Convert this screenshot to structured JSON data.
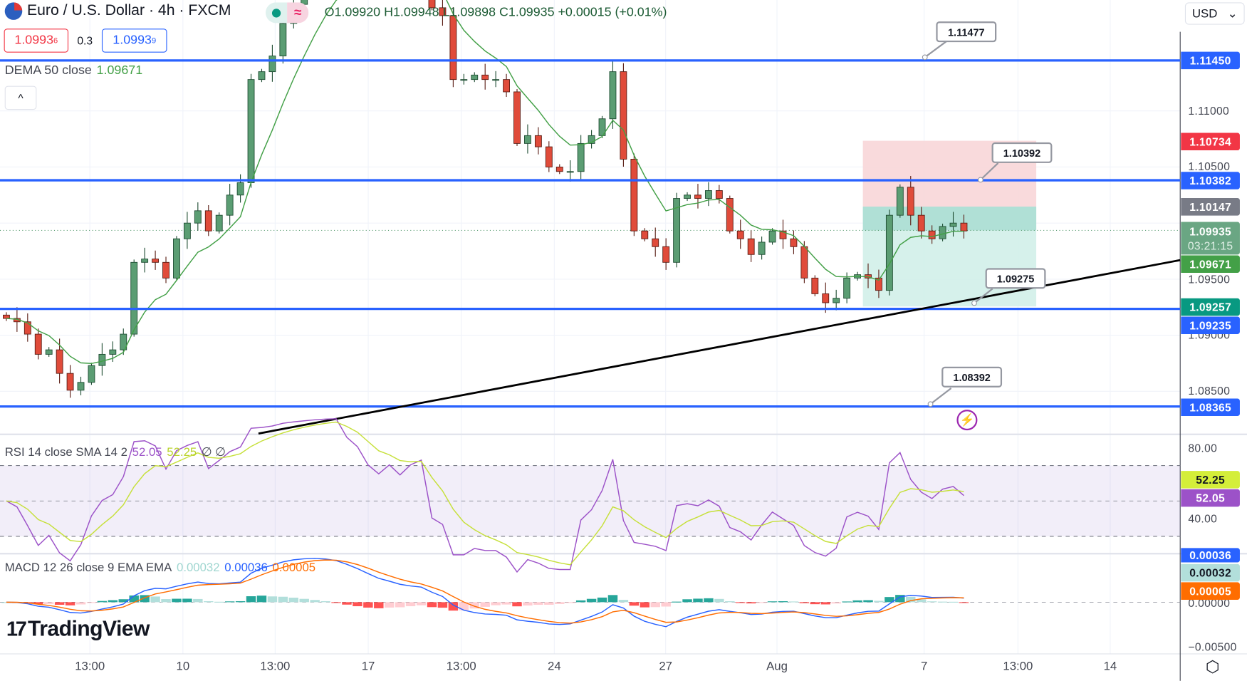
{
  "header": {
    "symbol_title": "Euro / U.S. Dollar · 4h · FXCM",
    "ohlc": {
      "open": "O1.09920",
      "high": "H1.09948",
      "low": "L1.09898",
      "close": "C1.09935",
      "change": "+0.00015 (+0.01%)"
    },
    "market_status_icon": "market-open-dot",
    "data_delay_icon": "wave-icon"
  },
  "quote": {
    "bid_main": "1.0993",
    "bid_pip": "6",
    "spread": "0.3",
    "ask_main": "1.0993",
    "ask_pip": "9"
  },
  "dema": {
    "label": "DEMA 50 close",
    "value": "1.09671"
  },
  "collapse_label": "^",
  "currency": {
    "label": "USD",
    "chevron": "⌄"
  },
  "price_axis": {
    "ticks": [
      "1.11000",
      "1.10500",
      "1.09500",
      "1.09000",
      "1.08500"
    ],
    "badges": {
      "line1": "1.11450",
      "stop": "1.10734",
      "line2": "1.10382",
      "entry": "1.10147",
      "last_price": "1.09935",
      "countdown": "03:21:15",
      "dema": "1.09671",
      "target": "1.09257",
      "line3": "1.09235",
      "line4": "1.08365"
    }
  },
  "callouts": {
    "c1": "1.11477",
    "c2": "1.10392",
    "c3": "1.09275",
    "c4": "1.08392"
  },
  "rsi": {
    "label": "RSI 14 close SMA 14 2",
    "rsi_value": "52.05",
    "sma_value": "52.25",
    "extra": "∅ ∅",
    "axis": {
      "t80": "80.00",
      "t40": "40.00"
    }
  },
  "macd": {
    "label": "MACD 12 26 close 9 EMA EMA",
    "hist_value": "0.00032",
    "macd_value": "0.00036",
    "signal_value": "0.00005",
    "axis": {
      "t0": "0.00000",
      "tneg": "−0.00500"
    }
  },
  "time_axis": [
    "13:00",
    "10",
    "13:00",
    "17",
    "13:00",
    "24",
    "27",
    "Aug",
    "7",
    "13:00",
    "14"
  ],
  "logo": {
    "text": "TradingView",
    "mark": "17"
  },
  "colors": {
    "up": "#5b9d73",
    "down": "#e04b3a",
    "level_line": "#2962ff",
    "dema": "#43a047",
    "rsi": "#9c52c8",
    "rsi_sma": "#c6e03a",
    "macd": "#2962ff",
    "signal": "#ff6d00",
    "stop_zone": "#f8d3d6",
    "target_zone": "#cfeee8"
  },
  "chart_data": {
    "type": "candlestick",
    "symbol": "EURUSD",
    "interval": "4h",
    "closes": [
      1.0915,
      1.0912,
      1.0901,
      1.0883,
      1.0887,
      1.0866,
      1.0851,
      1.0858,
      1.0873,
      1.0883,
      1.0887,
      1.0901,
      1.0965,
      1.0968,
      1.0965,
      1.0951,
      1.0986,
      1.1,
      1.1011,
      1.0993,
      1.1007,
      1.1025,
      1.1036,
      1.1128,
      1.1135,
      1.1149,
      1.1178,
      1.1195,
      1.121,
      1.1225,
      1.1235,
      1.124,
      1.123,
      1.1225,
      1.1215,
      1.121,
      1.122,
      1.1215,
      1.1225,
      1.123,
      1.1192,
      1.1185,
      1.1128,
      1.1128,
      1.1132,
      1.1128,
      1.1128,
      1.1117,
      1.1071,
      1.1078,
      1.1068,
      1.105,
      1.1046,
      1.1046,
      1.1071,
      1.1078,
      1.1093,
      1.1135,
      1.1057,
      1.0993,
      1.0986,
      1.0979,
      1.0965,
      1.1022,
      1.1025,
      1.1022,
      1.1029,
      1.1022,
      1.0993,
      1.0986,
      1.0972,
      1.0983,
      1.0993,
      1.0986,
      1.0979,
      1.0951,
      1.0937,
      1.0929,
      1.0933,
      1.0951,
      1.0954,
      1.0951,
      1.094,
      1.1007,
      1.1032,
      1.1007,
      1.0993,
      1.0986,
      1.0997,
      1.1,
      1.0993
    ],
    "horizontal_levels": [
      1.1145,
      1.10382,
      1.09235,
      1.08365
    ],
    "trendline": {
      "from_price": 1.0807,
      "to_price": 1.0966
    },
    "short_position": {
      "stop": 1.10734,
      "entry": 1.10147,
      "target": 1.09257
    }
  }
}
